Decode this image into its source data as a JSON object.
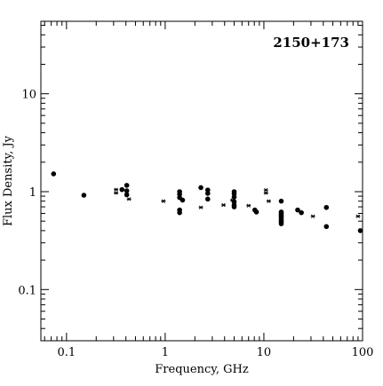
{
  "chart_data": {
    "type": "scatter",
    "title": "2150+173",
    "xlabel": "Frequency, GHz",
    "ylabel": "Flux Density, Jy",
    "x_scale": "log",
    "y_scale": "log",
    "xlim": [
      0.055,
      100
    ],
    "ylim": [
      0.03,
      55
    ],
    "x_ticks": [
      0.1,
      1,
      10,
      100
    ],
    "x_tick_labels": [
      "0.1",
      "1",
      "10",
      "100"
    ],
    "y_ticks": [
      0.1,
      1,
      10
    ],
    "y_tick_labels": [
      "0.1",
      "1",
      "10"
    ],
    "grid": false,
    "series": [
      {
        "marker": "filled-circle",
        "points": [
          [
            0.074,
            1.52
          ],
          [
            0.15,
            0.92
          ],
          [
            0.365,
            1.05
          ],
          [
            0.408,
            1.16
          ],
          [
            0.408,
            1.02
          ],
          [
            0.408,
            0.93
          ],
          [
            1.4,
            1.0
          ],
          [
            1.4,
            0.94
          ],
          [
            1.4,
            0.87
          ],
          [
            1.4,
            0.65
          ],
          [
            1.4,
            0.61
          ],
          [
            1.5,
            0.82
          ],
          [
            2.3,
            1.1
          ],
          [
            2.7,
            1.04
          ],
          [
            2.7,
            0.96
          ],
          [
            2.7,
            0.84
          ],
          [
            5.0,
            1.0
          ],
          [
            5.0,
            0.95
          ],
          [
            5.0,
            0.88
          ],
          [
            5.0,
            0.79
          ],
          [
            5.0,
            0.73
          ],
          [
            5.0,
            0.7
          ],
          [
            8.1,
            0.65
          ],
          [
            8.4,
            0.62
          ],
          [
            15,
            0.8
          ],
          [
            15,
            0.62
          ],
          [
            15,
            0.6
          ],
          [
            15,
            0.58
          ],
          [
            15,
            0.56
          ],
          [
            15,
            0.54
          ],
          [
            15,
            0.52
          ],
          [
            15,
            0.5
          ],
          [
            15,
            0.49
          ],
          [
            15,
            0.47
          ],
          [
            22,
            0.65
          ],
          [
            24,
            0.61
          ],
          [
            43,
            0.69
          ],
          [
            43,
            0.44
          ],
          [
            95,
            0.4
          ]
        ]
      },
      {
        "marker": "star",
        "points": [
          [
            0.318,
            1.05
          ],
          [
            0.318,
            0.97
          ],
          [
            0.43,
            0.84
          ],
          [
            0.96,
            0.8
          ],
          [
            2.3,
            0.69
          ],
          [
            3.9,
            0.73
          ],
          [
            4.8,
            0.82
          ],
          [
            7.0,
            0.72
          ],
          [
            10.5,
            1.04
          ],
          [
            10.5,
            0.97
          ],
          [
            11.2,
            0.8
          ],
          [
            31.4,
            0.56
          ],
          [
            90,
            0.56
          ]
        ]
      }
    ]
  }
}
